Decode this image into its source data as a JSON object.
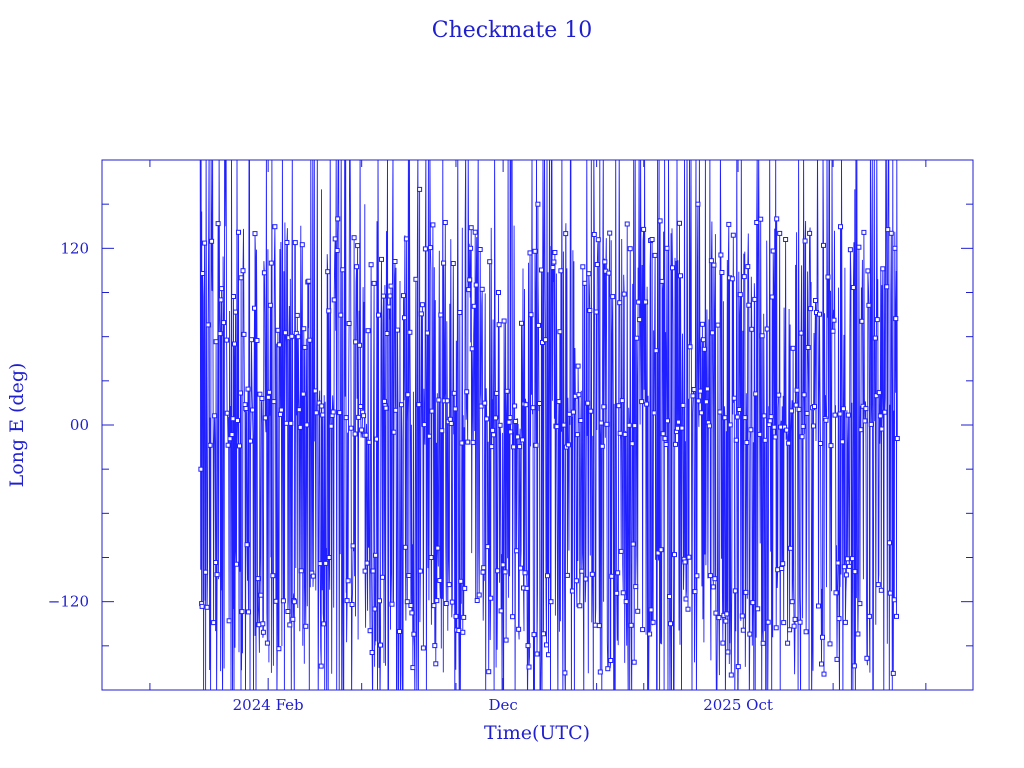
{
  "chart_data": {
    "type": "scatter",
    "title": "Checkmate 10",
    "xlabel": "Time(UTC)",
    "ylabel": "Long E (deg)",
    "color": "#1f1fff",
    "x_range": [
      "2023-07-01",
      "2026-08-01"
    ],
    "data_range": [
      "2023-11-05",
      "2026-04-25"
    ],
    "ylim": [
      -180,
      180
    ],
    "x_tick_labels": [
      {
        "date": "2024-02-01",
        "label": "2024 Feb"
      },
      {
        "date": "2024-12-01",
        "label": "Dec"
      },
      {
        "date": "2025-10-01",
        "label": "2025 Oct"
      }
    ],
    "x_minor_tick_dates": [
      "2023-09-01",
      "2024-06-01",
      "2024-10-01",
      "2025-04-01",
      "2025-06-01",
      "2026-02-01",
      "2026-06-01"
    ],
    "y_tick_labels": [
      {
        "value": 120,
        "label": "120"
      },
      {
        "value": 0,
        "label": "00"
      },
      {
        "value": -120,
        "label": "−120"
      }
    ],
    "y_minor_ticks": [
      -150,
      -90,
      -60,
      -30,
      30,
      60,
      90,
      150
    ],
    "grid": false,
    "marker": "square",
    "line_connected": true,
    "longitude_bands": [
      {
        "name": "high",
        "center": 95
      },
      {
        "name": "mid",
        "center": 5
      },
      {
        "name": "low",
        "center": -125
      }
    ],
    "series": [
      {
        "points": [
          [
            "2023-11-06",
            -30
          ],
          [
            "2023-11-07",
            145
          ],
          [
            "2023-11-08",
            75
          ],
          [
            "2023-11-12",
            -100
          ],
          [
            "2023-11-18",
            5
          ],
          [
            "2023-11-25",
            -140
          ],
          [
            "2023-12-02",
            85
          ],
          [
            "2023-12-10",
            8
          ],
          [
            "2023-12-18",
            -125
          ],
          [
            "2023-12-28",
            100
          ],
          [
            "2024-01-06",
            -90
          ],
          [
            "2024-01-15",
            130
          ],
          [
            "2024-01-25",
            -135
          ],
          [
            "2024-02-05",
            110
          ],
          [
            "2024-02-15",
            -130
          ],
          [
            "2024-02-25",
            120
          ],
          [
            "2024-03-06",
            -120
          ],
          [
            "2024-03-18",
            10
          ],
          [
            "2024-03-30",
            -110
          ],
          [
            "2024-04-10",
            160
          ],
          [
            "2024-04-20",
            -90
          ],
          [
            "2024-05-01",
            140
          ],
          [
            "2024-05-12",
            5
          ],
          [
            "2024-05-24",
            -130
          ],
          [
            "2024-06-05",
            150
          ],
          [
            "2024-06-18",
            -125
          ],
          [
            "2024-07-01",
            95
          ],
          [
            "2024-07-15",
            10
          ],
          [
            "2024-07-30",
            -120
          ],
          [
            "2024-08-15",
            160
          ],
          [
            "2024-08-30",
            -90
          ],
          [
            "2024-09-15",
            110
          ],
          [
            "2024-10-01",
            -130
          ],
          [
            "2024-10-20",
            120
          ],
          [
            "2024-11-05",
            -100
          ],
          [
            "2024-11-25",
            90
          ],
          [
            "2024-12-10",
            5
          ],
          [
            "2024-12-28",
            -140
          ],
          [
            "2025-01-15",
            150
          ],
          [
            "2025-02-01",
            -120
          ],
          [
            "2025-02-20",
            130
          ],
          [
            "2025-03-08",
            40
          ],
          [
            "2025-03-25",
            0
          ],
          [
            "2025-04-10",
            -120
          ],
          [
            "2025-05-01",
            90
          ],
          [
            "2025-05-20",
            5
          ],
          [
            "2025-06-10",
            -140
          ],
          [
            "2025-07-01",
            120
          ],
          [
            "2025-07-20",
            -130
          ],
          [
            "2025-08-10",
            150
          ],
          [
            "2025-08-30",
            -110
          ],
          [
            "2025-09-20",
            100
          ],
          [
            "2025-10-10",
            5
          ],
          [
            "2025-11-01",
            -100
          ],
          [
            "2025-11-20",
            140
          ],
          [
            "2025-12-10",
            -120
          ],
          [
            "2026-01-01",
            90
          ],
          [
            "2026-01-20",
            5
          ],
          [
            "2026-02-10",
            -110
          ],
          [
            "2026-03-01",
            160
          ],
          [
            "2026-03-20",
            -130
          ],
          [
            "2026-04-05",
            95
          ],
          [
            "2026-04-15",
            -80
          ],
          [
            "2026-04-22",
            120
          ],
          [
            "2026-04-24",
            -130
          ]
        ]
      }
    ]
  }
}
